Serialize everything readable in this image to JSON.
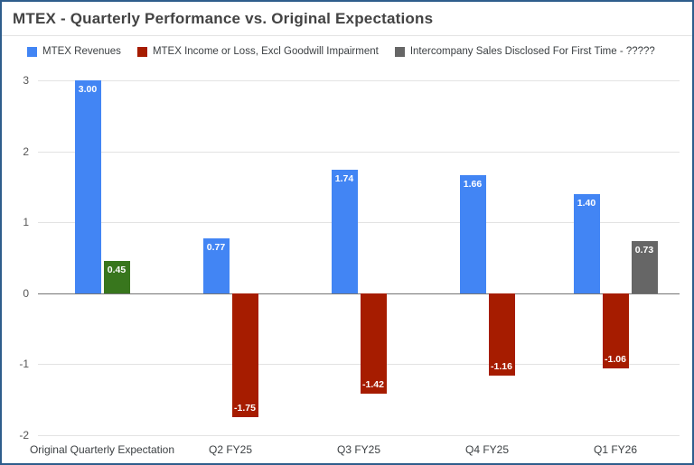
{
  "chart_data": {
    "type": "bar",
    "title": "MTEX - Quarterly Performance vs. Original Expectations",
    "categories": [
      "Original Quarterly Expectation",
      "Q2 FY25",
      "Q3 FY25",
      "Q4 FY25",
      "Q1 FY26"
    ],
    "series": [
      {
        "name": "MTEX Revenues",
        "color": "#4285f4",
        "values": [
          3.0,
          0.77,
          1.74,
          1.66,
          1.4
        ]
      },
      {
        "name": "MTEX Income or Loss, Excl Goodwill Impairment",
        "color": "#a61c00",
        "point_colors": {
          "0": "#38761d"
        },
        "values": [
          0.45,
          -1.75,
          -1.42,
          -1.16,
          -1.06
        ]
      },
      {
        "name": "Intercompany Sales Disclosed For First Time - ?????",
        "color": "#666666",
        "values": [
          null,
          null,
          null,
          null,
          0.73
        ]
      }
    ],
    "ylim": [
      -2,
      3
    ],
    "yticks": [
      3,
      2,
      1,
      0,
      -1,
      -2
    ],
    "grid": true,
    "legend_position": "top",
    "value_label_format": "0.00"
  },
  "colors": {
    "frame_border": "#2e5d8c",
    "title_text": "#434343",
    "grid_line": "#e3e3e3",
    "zero_line": "#757575",
    "axis_text": "#3c4043",
    "bar_label_text": "#ffffff"
  }
}
